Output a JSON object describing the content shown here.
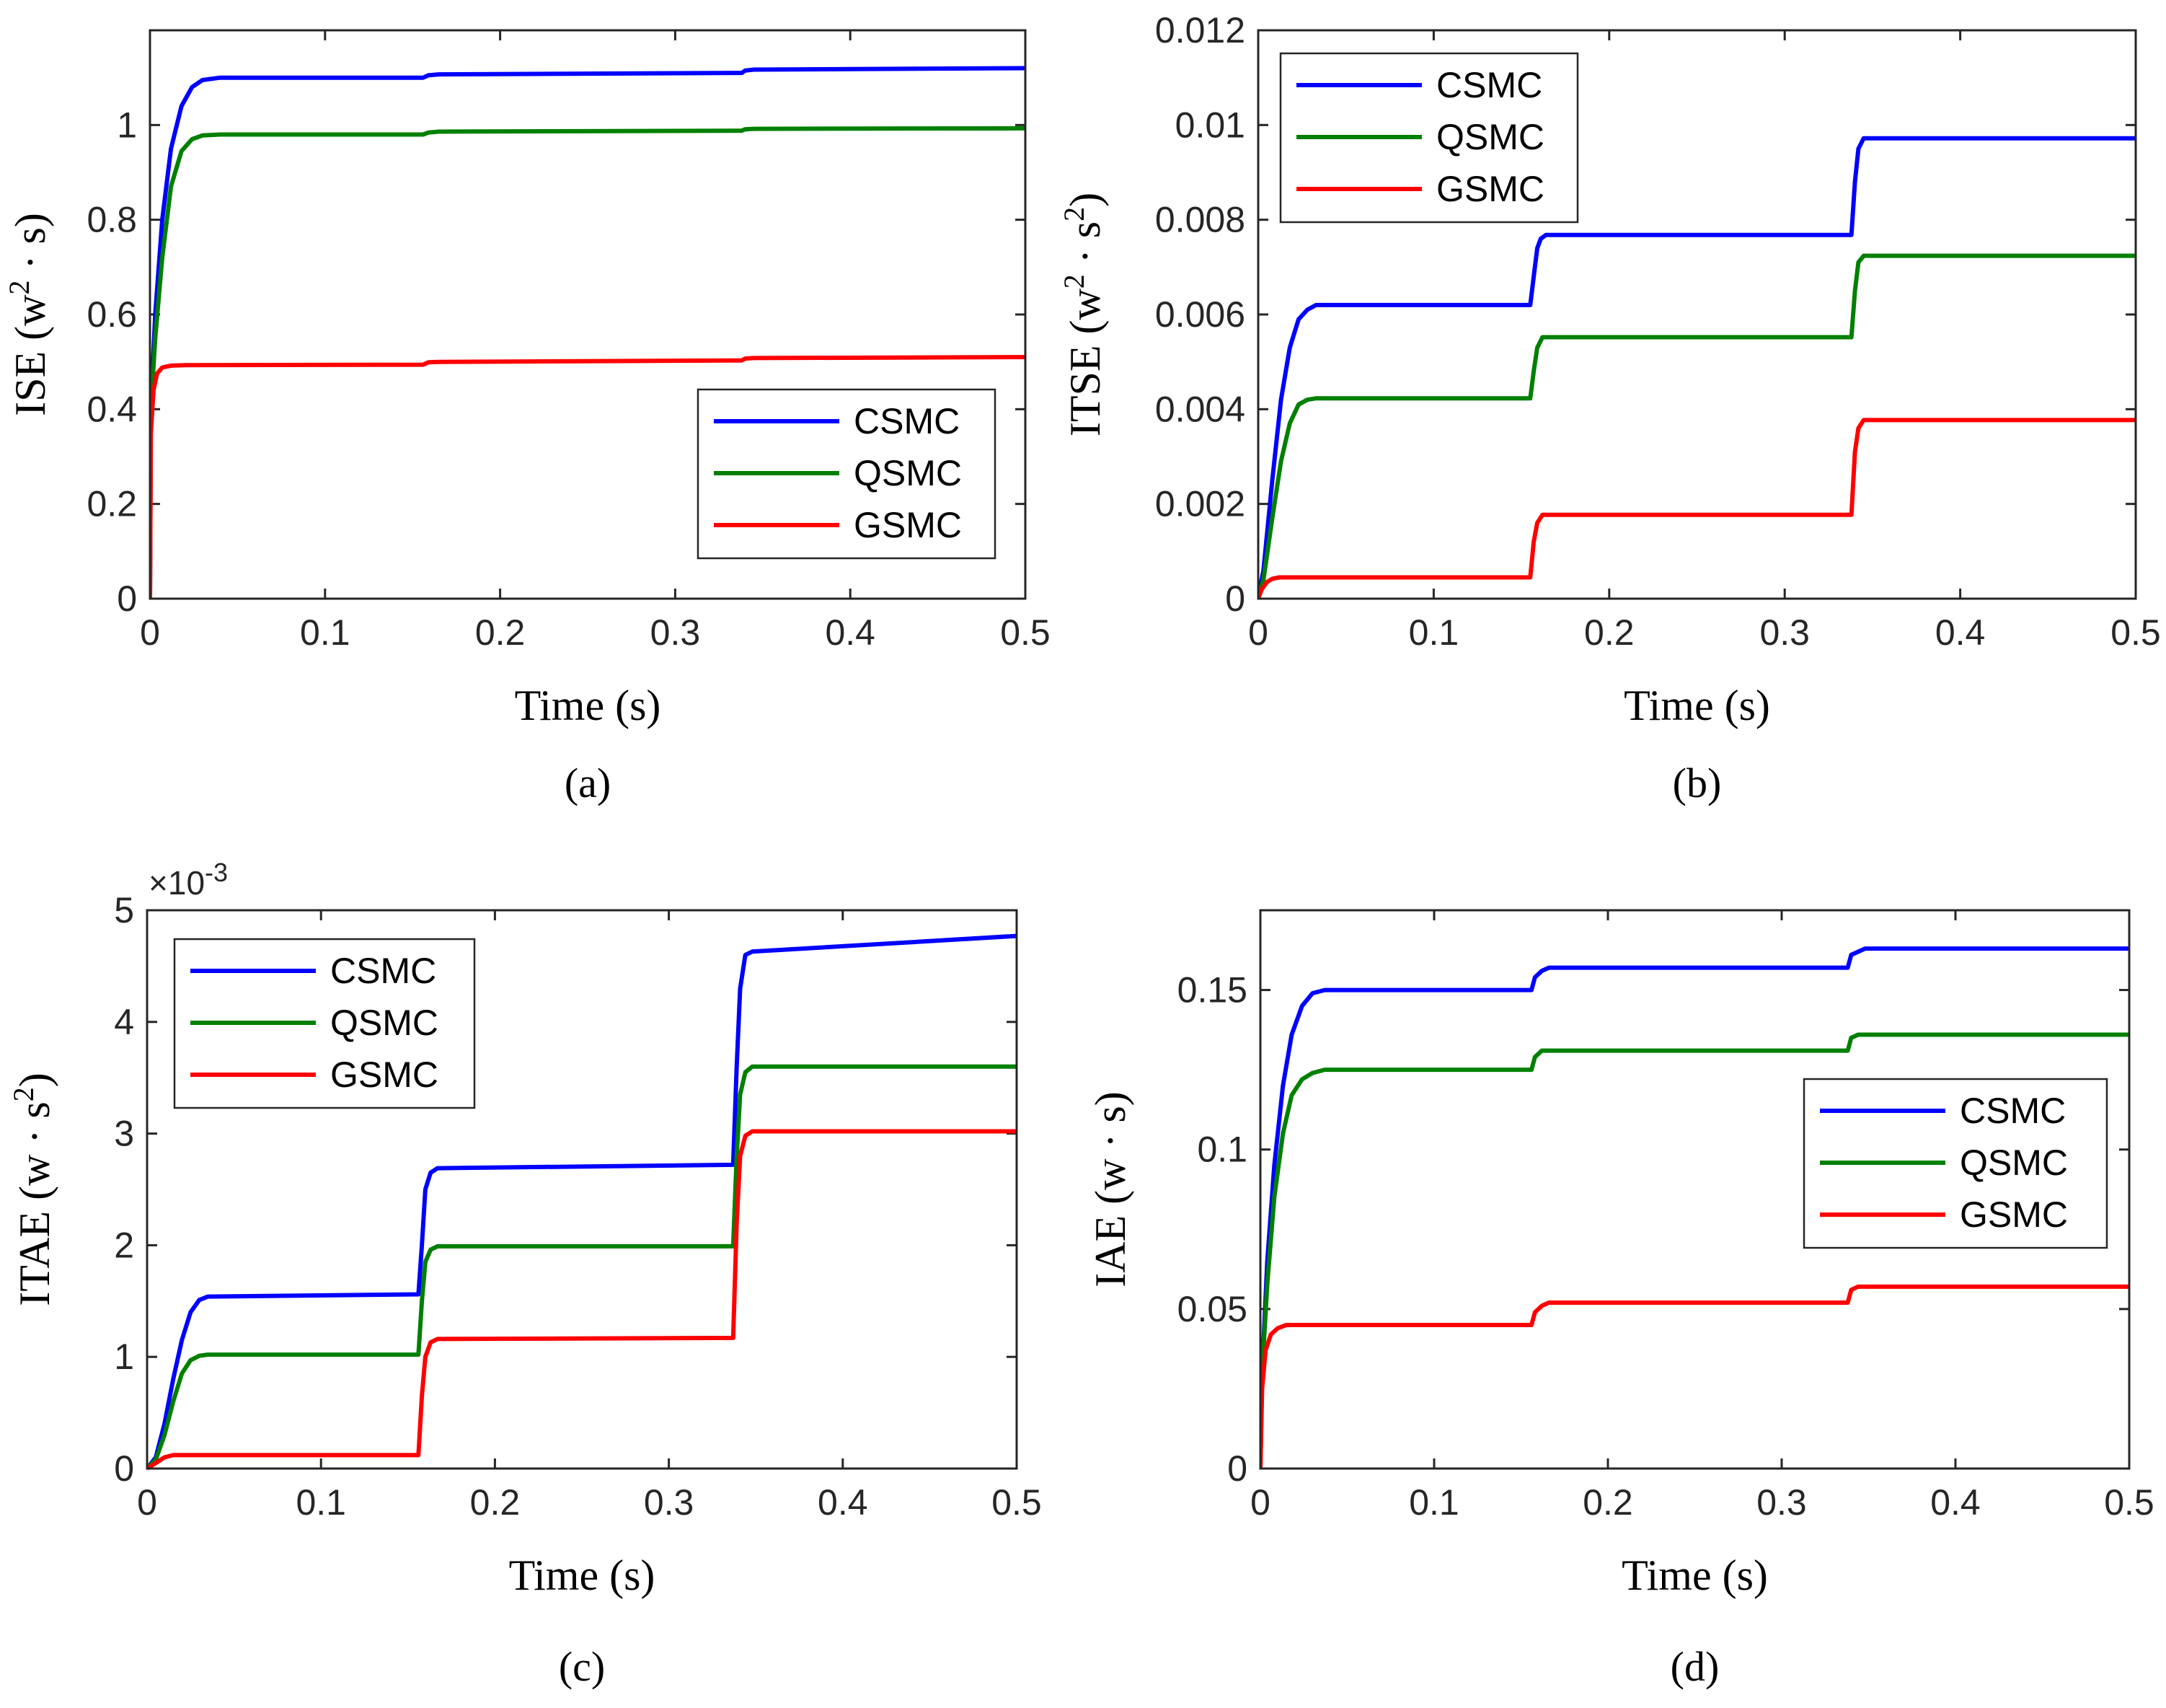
{
  "chart_data": [
    {
      "id": "a",
      "type": "line",
      "caption": "(a)",
      "xlabel": "Time (s)",
      "ylabel_main": "ISE",
      "ylabel_units": [
        "(w",
        "2",
        " · s)"
      ],
      "xlim": [
        0,
        0.5
      ],
      "ylim": [
        0,
        1.2
      ],
      "xticks": [
        0,
        0.1,
        0.2,
        0.3,
        0.4,
        0.5
      ],
      "xtick_labels": [
        "0",
        "0.1",
        "0.2",
        "0.3",
        "0.4",
        "0.5"
      ],
      "yticks": [
        0,
        0.2,
        0.4,
        0.6,
        0.8,
        1
      ],
      "ytick_labels": [
        "0",
        "0.2",
        "0.4",
        "0.6",
        "0.8",
        "1"
      ],
      "exponent_label": "",
      "legend_position": "lower-right",
      "series": [
        {
          "name": "CSMC",
          "color": "#0000ff",
          "points": [
            [
              0,
              0
            ],
            [
              0.0005,
              0.4
            ],
            [
              0.003,
              0.6
            ],
            [
              0.007,
              0.8
            ],
            [
              0.012,
              0.95
            ],
            [
              0.018,
              1.04
            ],
            [
              0.024,
              1.08
            ],
            [
              0.03,
              1.095
            ],
            [
              0.04,
              1.1
            ],
            [
              0.156,
              1.1
            ],
            [
              0.159,
              1.105
            ],
            [
              0.165,
              1.107
            ],
            [
              0.338,
              1.11
            ],
            [
              0.34,
              1.115
            ],
            [
              0.345,
              1.117
            ],
            [
              0.5,
              1.12
            ]
          ]
        },
        {
          "name": "QSMC",
          "color": "#008000",
          "points": [
            [
              0,
              0
            ],
            [
              0.0005,
              0.4
            ],
            [
              0.003,
              0.55
            ],
            [
              0.007,
              0.72
            ],
            [
              0.012,
              0.87
            ],
            [
              0.018,
              0.945
            ],
            [
              0.024,
              0.97
            ],
            [
              0.03,
              0.978
            ],
            [
              0.04,
              0.98
            ],
            [
              0.156,
              0.98
            ],
            [
              0.159,
              0.984
            ],
            [
              0.165,
              0.986
            ],
            [
              0.338,
              0.988
            ],
            [
              0.34,
              0.991
            ],
            [
              0.345,
              0.992
            ],
            [
              0.5,
              0.993
            ]
          ]
        },
        {
          "name": "GSMC",
          "color": "#ff0000",
          "points": [
            [
              0,
              0
            ],
            [
              0.0005,
              0.35
            ],
            [
              0.002,
              0.44
            ],
            [
              0.004,
              0.475
            ],
            [
              0.007,
              0.488
            ],
            [
              0.012,
              0.492
            ],
            [
              0.02,
              0.493
            ],
            [
              0.156,
              0.494
            ],
            [
              0.159,
              0.499
            ],
            [
              0.165,
              0.5
            ],
            [
              0.338,
              0.503
            ],
            [
              0.34,
              0.507
            ],
            [
              0.345,
              0.508
            ],
            [
              0.5,
              0.51
            ]
          ]
        }
      ]
    },
    {
      "id": "b",
      "type": "line",
      "caption": "(b)",
      "xlabel": "Time (s)",
      "ylabel_main": "ITSE",
      "ylabel_units": [
        "(w",
        "2",
        " · s",
        "2",
        ")"
      ],
      "xlim": [
        0,
        0.5
      ],
      "ylim": [
        0,
        0.012
      ],
      "xticks": [
        0,
        0.1,
        0.2,
        0.3,
        0.4,
        0.5
      ],
      "xtick_labels": [
        "0",
        "0.1",
        "0.2",
        "0.3",
        "0.4",
        "0.5"
      ],
      "yticks": [
        0,
        0.002,
        0.004,
        0.006,
        0.008,
        0.01,
        0.012
      ],
      "ytick_labels": [
        "0",
        "0.002",
        "0.004",
        "0.006",
        "0.008",
        "0.01",
        "0.012"
      ],
      "exponent_label": "",
      "legend_position": "top-left",
      "series": [
        {
          "name": "CSMC",
          "color": "#0000ff",
          "points": [
            [
              0,
              0
            ],
            [
              0.003,
              0.0006
            ],
            [
              0.008,
              0.0025
            ],
            [
              0.013,
              0.0042
            ],
            [
              0.018,
              0.0053
            ],
            [
              0.023,
              0.0059
            ],
            [
              0.028,
              0.0061
            ],
            [
              0.033,
              0.0062
            ],
            [
              0.155,
              0.0062
            ],
            [
              0.157,
              0.0068
            ],
            [
              0.159,
              0.0074
            ],
            [
              0.161,
              0.0076
            ],
            [
              0.164,
              0.00768
            ],
            [
              0.338,
              0.00768
            ],
            [
              0.34,
              0.0088
            ],
            [
              0.342,
              0.0095
            ],
            [
              0.345,
              0.00972
            ],
            [
              0.5,
              0.00972
            ]
          ]
        },
        {
          "name": "QSMC",
          "color": "#008000",
          "points": [
            [
              0,
              0
            ],
            [
              0.003,
              0.0004
            ],
            [
              0.008,
              0.0017
            ],
            [
              0.013,
              0.0029
            ],
            [
              0.018,
              0.0037
            ],
            [
              0.023,
              0.0041
            ],
            [
              0.028,
              0.0042
            ],
            [
              0.033,
              0.00423
            ],
            [
              0.155,
              0.00423
            ],
            [
              0.157,
              0.0048
            ],
            [
              0.159,
              0.0053
            ],
            [
              0.162,
              0.00552
            ],
            [
              0.338,
              0.00552
            ],
            [
              0.34,
              0.0065
            ],
            [
              0.342,
              0.0071
            ],
            [
              0.345,
              0.00724
            ],
            [
              0.5,
              0.00724
            ]
          ]
        },
        {
          "name": "GSMC",
          "color": "#ff0000",
          "points": [
            [
              0,
              0
            ],
            [
              0.002,
              0.0002
            ],
            [
              0.005,
              0.00035
            ],
            [
              0.008,
              0.00042
            ],
            [
              0.012,
              0.00045
            ],
            [
              0.155,
              0.00045
            ],
            [
              0.157,
              0.0012
            ],
            [
              0.159,
              0.0016
            ],
            [
              0.162,
              0.00177
            ],
            [
              0.338,
              0.00177
            ],
            [
              0.34,
              0.0031
            ],
            [
              0.342,
              0.0036
            ],
            [
              0.345,
              0.00377
            ],
            [
              0.5,
              0.00377
            ]
          ]
        }
      ]
    },
    {
      "id": "c",
      "type": "line",
      "caption": "(c)",
      "xlabel": "Time (s)",
      "ylabel_main": "ITAE",
      "ylabel_units": [
        "(w · s",
        "2",
        ")"
      ],
      "xlim": [
        0,
        0.5
      ],
      "ylim": [
        0,
        5
      ],
      "xticks": [
        0,
        0.1,
        0.2,
        0.3,
        0.4,
        0.5
      ],
      "xtick_labels": [
        "0",
        "0.1",
        "0.2",
        "0.3",
        "0.4",
        "0.5"
      ],
      "yticks": [
        0,
        1,
        2,
        3,
        4,
        5
      ],
      "ytick_labels": [
        "0",
        "1",
        "2",
        "3",
        "4",
        "5"
      ],
      "exponent_label": "×10",
      "exponent_power": "-3",
      "legend_position": "top-left",
      "series": [
        {
          "name": "CSMC",
          "color": "#0000ff",
          "points": [
            [
              0,
              0
            ],
            [
              0.005,
              0.1
            ],
            [
              0.01,
              0.4
            ],
            [
              0.015,
              0.8
            ],
            [
              0.02,
              1.15
            ],
            [
              0.025,
              1.4
            ],
            [
              0.03,
              1.51
            ],
            [
              0.035,
              1.54
            ],
            [
              0.156,
              1.56
            ],
            [
              0.158,
              2.0
            ],
            [
              0.16,
              2.5
            ],
            [
              0.163,
              2.65
            ],
            [
              0.167,
              2.69
            ],
            [
              0.337,
              2.72
            ],
            [
              0.339,
              3.6
            ],
            [
              0.341,
              4.3
            ],
            [
              0.344,
              4.6
            ],
            [
              0.348,
              4.63
            ],
            [
              0.5,
              4.77
            ]
          ]
        },
        {
          "name": "QSMC",
          "color": "#008000",
          "points": [
            [
              0,
              0
            ],
            [
              0.005,
              0.08
            ],
            [
              0.01,
              0.3
            ],
            [
              0.015,
              0.6
            ],
            [
              0.02,
              0.85
            ],
            [
              0.025,
              0.97
            ],
            [
              0.03,
              1.01
            ],
            [
              0.035,
              1.02
            ],
            [
              0.156,
              1.02
            ],
            [
              0.158,
              1.5
            ],
            [
              0.16,
              1.85
            ],
            [
              0.163,
              1.96
            ],
            [
              0.167,
              1.99
            ],
            [
              0.337,
              1.99
            ],
            [
              0.339,
              2.8
            ],
            [
              0.341,
              3.35
            ],
            [
              0.344,
              3.55
            ],
            [
              0.348,
              3.6
            ],
            [
              0.5,
              3.6
            ]
          ]
        },
        {
          "name": "GSMC",
          "color": "#ff0000",
          "points": [
            [
              0,
              0
            ],
            [
              0.005,
              0.05
            ],
            [
              0.01,
              0.1
            ],
            [
              0.015,
              0.12
            ],
            [
              0.156,
              0.12
            ],
            [
              0.158,
              0.65
            ],
            [
              0.16,
              1.0
            ],
            [
              0.163,
              1.13
            ],
            [
              0.167,
              1.16
            ],
            [
              0.337,
              1.17
            ],
            [
              0.339,
              2.2
            ],
            [
              0.341,
              2.8
            ],
            [
              0.344,
              2.98
            ],
            [
              0.348,
              3.02
            ],
            [
              0.5,
              3.02
            ]
          ]
        }
      ]
    },
    {
      "id": "d",
      "type": "line",
      "caption": "(d)",
      "xlabel": "Time (s)",
      "ylabel_main": "IAE",
      "ylabel_units": [
        "(w · s)"
      ],
      "xlim": [
        0,
        0.5
      ],
      "ylim": [
        0,
        0.175
      ],
      "xticks": [
        0,
        0.1,
        0.2,
        0.3,
        0.4,
        0.5
      ],
      "xtick_labels": [
        "0",
        "0.1",
        "0.2",
        "0.3",
        "0.4",
        "0.5"
      ],
      "yticks": [
        0,
        0.05,
        0.1,
        0.15
      ],
      "ytick_labels": [
        "0",
        "0.05",
        "0.1",
        "0.15"
      ],
      "exponent_label": "",
      "legend_position": "right",
      "series": [
        {
          "name": "CSMC",
          "color": "#0000ff",
          "points": [
            [
              0,
              0
            ],
            [
              0.001,
              0.03
            ],
            [
              0.004,
              0.065
            ],
            [
              0.008,
              0.095
            ],
            [
              0.013,
              0.12
            ],
            [
              0.018,
              0.136
            ],
            [
              0.024,
              0.145
            ],
            [
              0.03,
              0.149
            ],
            [
              0.037,
              0.15
            ],
            [
              0.156,
              0.15
            ],
            [
              0.158,
              0.154
            ],
            [
              0.162,
              0.156
            ],
            [
              0.166,
              0.157
            ],
            [
              0.338,
              0.157
            ],
            [
              0.34,
              0.161
            ],
            [
              0.344,
              0.162
            ],
            [
              0.348,
              0.163
            ],
            [
              0.5,
              0.163
            ]
          ]
        },
        {
          "name": "QSMC",
          "color": "#008000",
          "points": [
            [
              0,
              0
            ],
            [
              0.001,
              0.03
            ],
            [
              0.004,
              0.058
            ],
            [
              0.008,
              0.085
            ],
            [
              0.013,
              0.105
            ],
            [
              0.018,
              0.117
            ],
            [
              0.024,
              0.122
            ],
            [
              0.03,
              0.124
            ],
            [
              0.037,
              0.125
            ],
            [
              0.156,
              0.125
            ],
            [
              0.158,
              0.129
            ],
            [
              0.162,
              0.131
            ],
            [
              0.166,
              0.131
            ],
            [
              0.338,
              0.131
            ],
            [
              0.34,
              0.135
            ],
            [
              0.344,
              0.136
            ],
            [
              0.348,
              0.136
            ],
            [
              0.5,
              0.136
            ]
          ]
        },
        {
          "name": "GSMC",
          "color": "#ff0000",
          "points": [
            [
              0,
              0
            ],
            [
              0.001,
              0.025
            ],
            [
              0.003,
              0.037
            ],
            [
              0.006,
              0.042
            ],
            [
              0.01,
              0.044
            ],
            [
              0.015,
              0.045
            ],
            [
              0.156,
              0.045
            ],
            [
              0.158,
              0.049
            ],
            [
              0.162,
              0.051
            ],
            [
              0.166,
              0.052
            ],
            [
              0.338,
              0.052
            ],
            [
              0.34,
              0.056
            ],
            [
              0.344,
              0.057
            ],
            [
              0.348,
              0.057
            ],
            [
              0.5,
              0.057
            ]
          ]
        }
      ]
    }
  ]
}
